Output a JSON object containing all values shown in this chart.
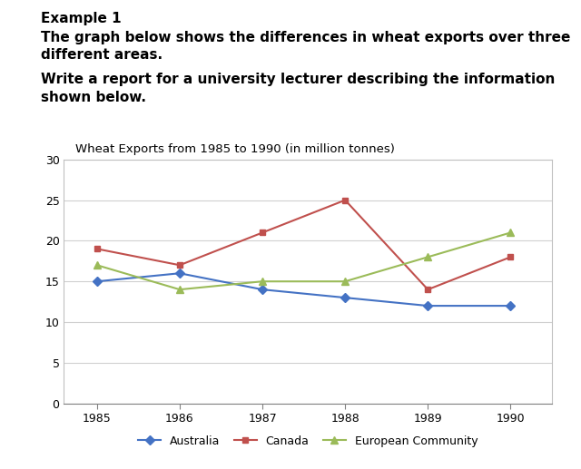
{
  "title": "Wheat Exports from 1985 to 1990 (in million tonnes)",
  "years": [
    1985,
    1986,
    1987,
    1988,
    1989,
    1990
  ],
  "australia": [
    15,
    16,
    14,
    13,
    12,
    12
  ],
  "canada": [
    19,
    17,
    21,
    25,
    14,
    18
  ],
  "european_community": [
    17,
    14,
    15,
    15,
    18,
    21
  ],
  "australia_color": "#4472C4",
  "canada_color": "#C0504D",
  "ec_color": "#9BBB59",
  "ylim": [
    0,
    30
  ],
  "yticks": [
    0,
    5,
    10,
    15,
    20,
    25,
    30
  ],
  "header_line1": "Example 1",
  "header_line2": "The graph below shows the differences in wheat exports over three\ndifferent areas.",
  "header_line4": "Write a report for a university lecturer describing the information\nshown below.",
  "legend_labels": [
    "Australia",
    "Canada",
    "European Community"
  ],
  "bg_color": "#ffffff",
  "header_fontsize": 11,
  "title_fontsize": 9.5,
  "tick_fontsize": 9,
  "legend_fontsize": 9
}
